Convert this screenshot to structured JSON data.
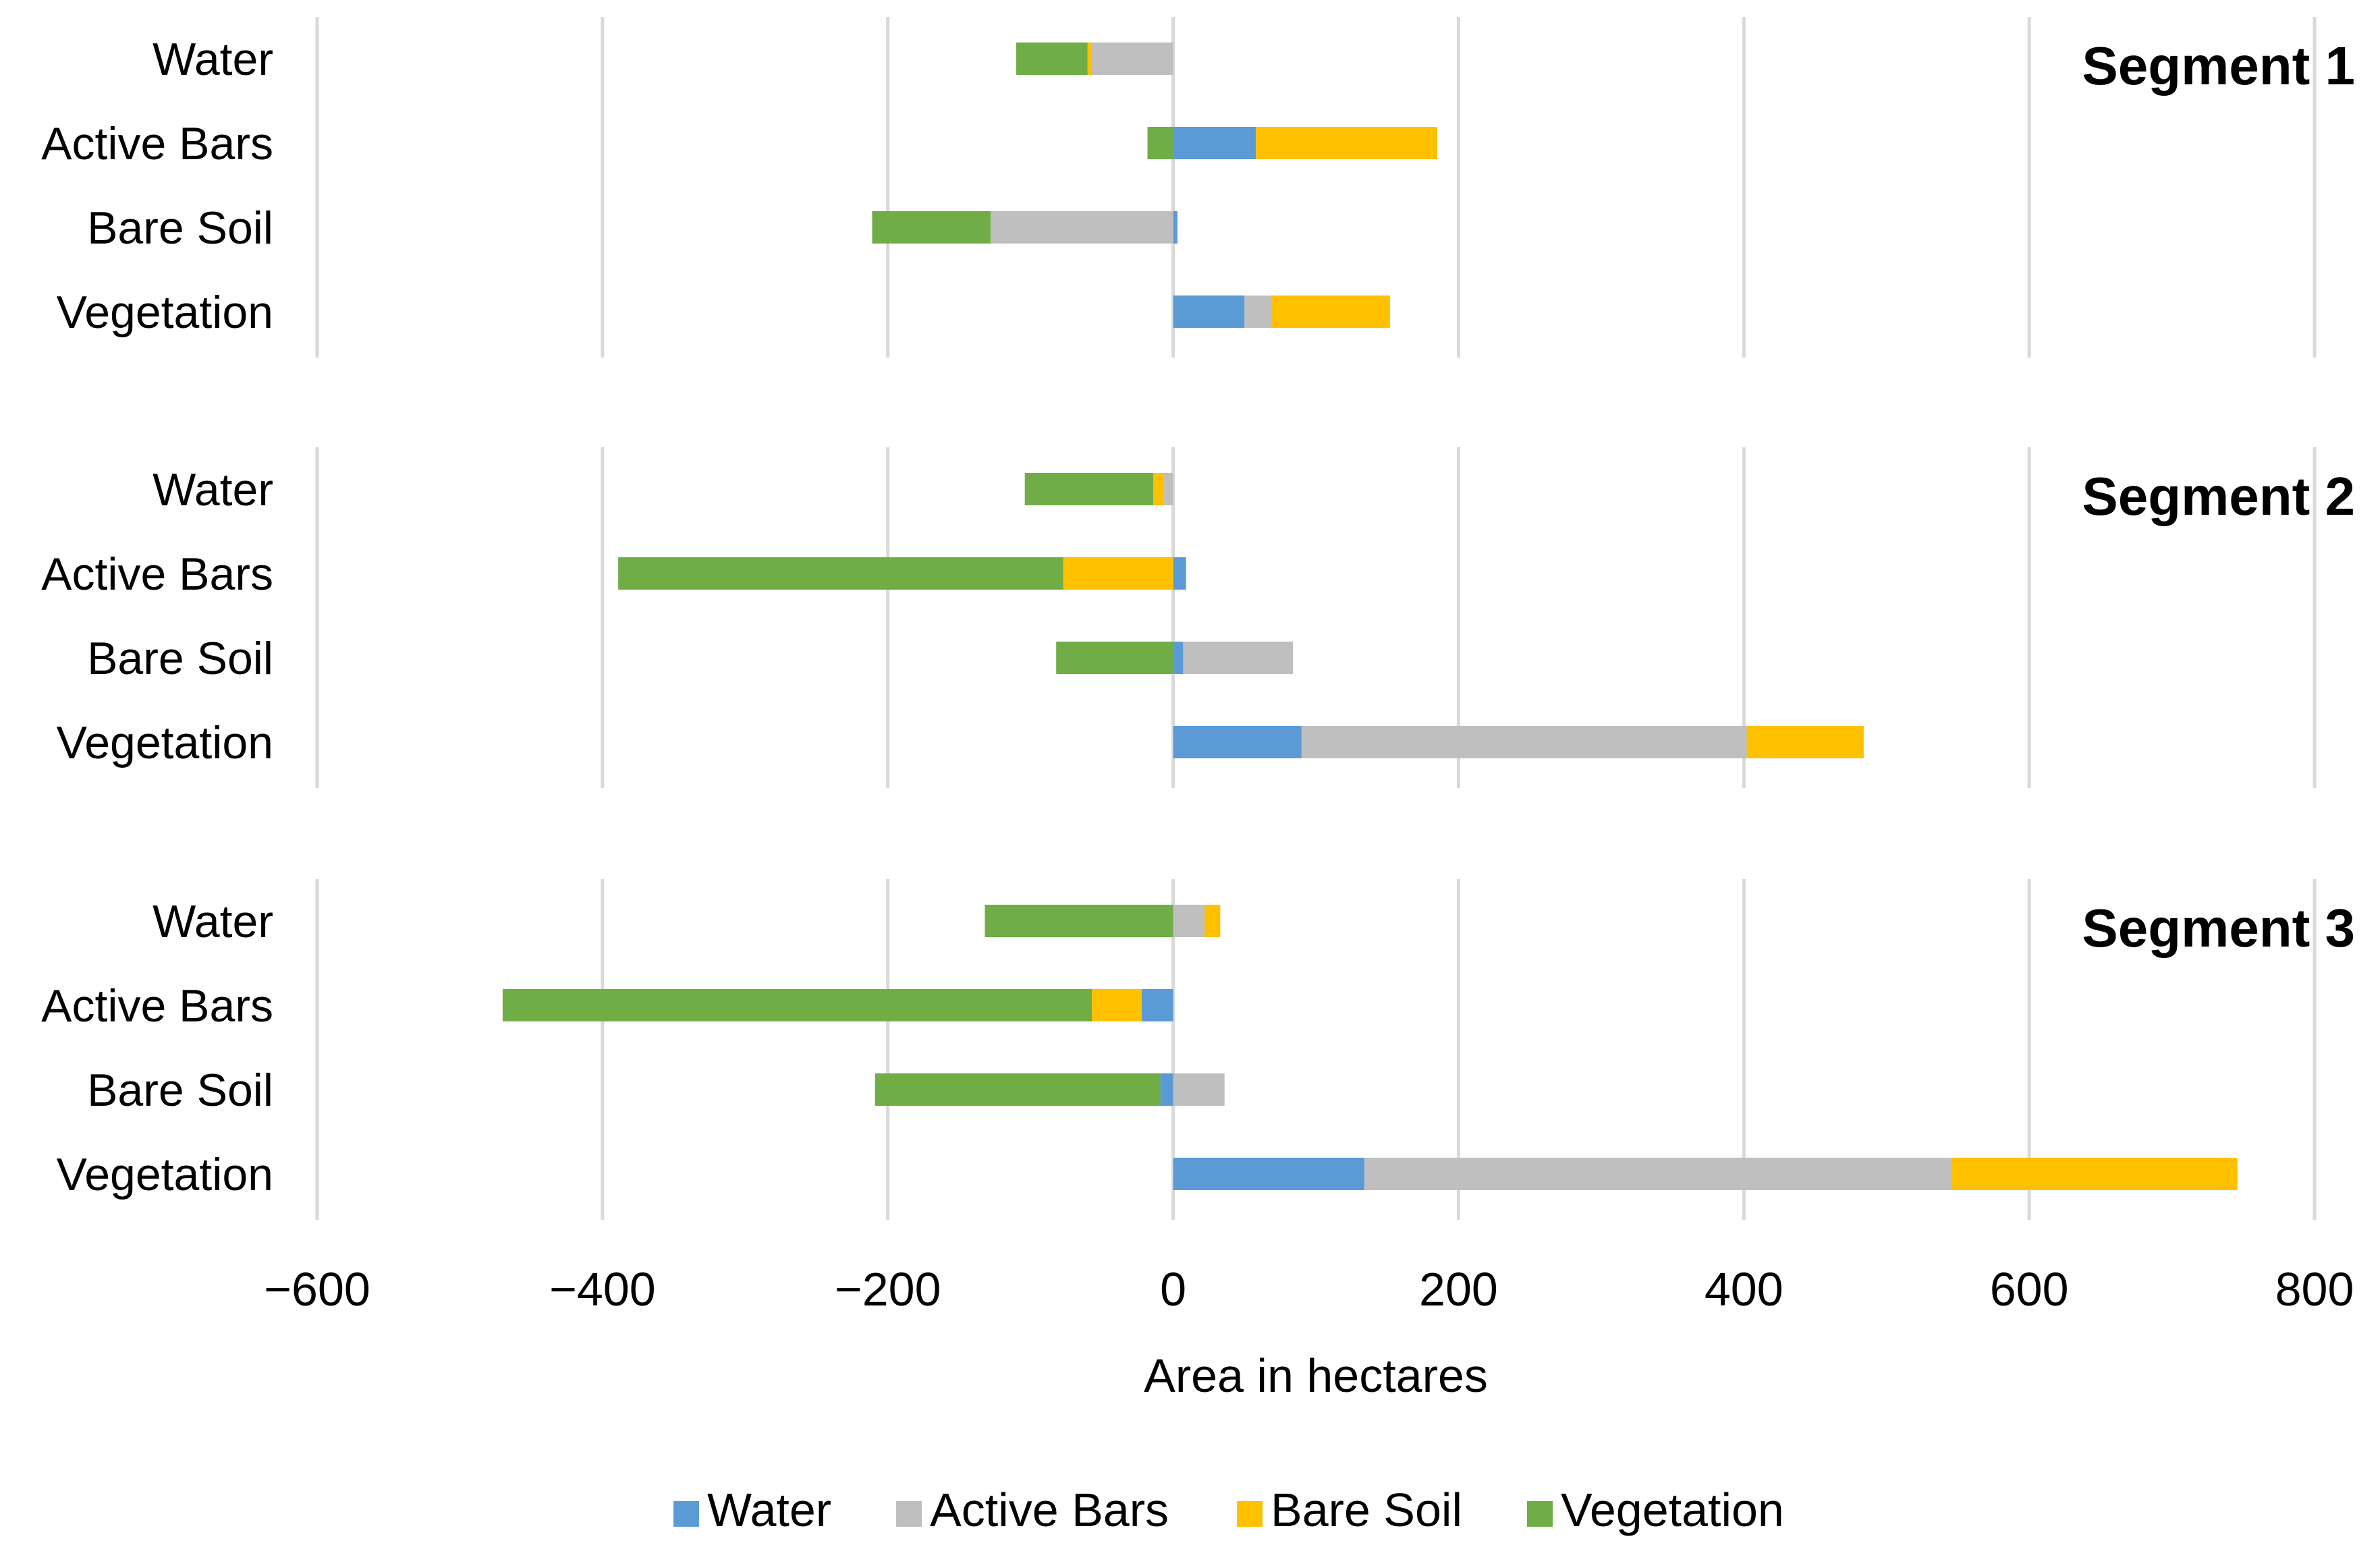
{
  "chart_data": {
    "type": "bar",
    "orientation": "horizontal",
    "stacking": "diverging",
    "xlabel": "Area in hectares",
    "xlim": [
      -600,
      800
    ],
    "xticks": [
      -600,
      -400,
      -200,
      0,
      200,
      400,
      600,
      800
    ],
    "xtick_labels": [
      "−600",
      "−400",
      "−200",
      "0",
      "200",
      "400",
      "600",
      "800"
    ],
    "grid": true,
    "legend_position": "bottom",
    "series_names": [
      "Water",
      "Active Bars",
      "Bare Soil",
      "Vegetation"
    ],
    "colors": {
      "Water": "#5b9bd5",
      "Active Bars": "#bfbfbf",
      "Bare Soil": "#ffc000",
      "Vegetation": "#70ad47"
    },
    "panels": [
      {
        "title": "Segment 1",
        "categories": [
          "Water",
          "Active Bars",
          "Bare Soil",
          "Vegetation"
        ],
        "series": [
          {
            "name": "Water",
            "values": [
              0,
              58,
              3,
              50
            ]
          },
          {
            "name": "Active Bars",
            "values": [
              -57,
              0,
              -128,
              19
            ]
          },
          {
            "name": "Bare Soil",
            "values": [
              -3,
              127,
              0,
              83
            ]
          },
          {
            "name": "Vegetation",
            "values": [
              -50,
              -18,
              -83,
              0
            ]
          }
        ]
      },
      {
        "title": "Segment 2",
        "categories": [
          "Water",
          "Active Bars",
          "Bare Soil",
          "Vegetation"
        ],
        "series": [
          {
            "name": "Water",
            "values": [
              0,
              9,
              7,
              90
            ]
          },
          {
            "name": "Active Bars",
            "values": [
              -7,
              0,
              77,
              312
            ]
          },
          {
            "name": "Bare Soil",
            "values": [
              -7,
              -77,
              0,
              82
            ]
          },
          {
            "name": "Vegetation",
            "values": [
              -90,
              -312,
              -82,
              0
            ]
          }
        ]
      },
      {
        "title": "Segment 3",
        "categories": [
          "Water",
          "Active Bars",
          "Bare Soil",
          "Vegetation"
        ],
        "series": [
          {
            "name": "Water",
            "values": [
              0,
              -22,
              -9,
              134
            ]
          },
          {
            "name": "Active Bars",
            "values": [
              22,
              0,
              36,
              412
            ]
          },
          {
            "name": "Bare Soil",
            "values": [
              11,
              -35,
              0,
              200
            ]
          },
          {
            "name": "Vegetation",
            "values": [
              -132,
              -413,
              -200,
              0
            ]
          }
        ]
      }
    ]
  }
}
